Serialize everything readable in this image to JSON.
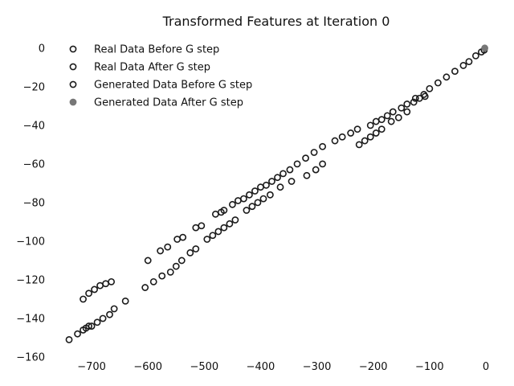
{
  "chart_data": {
    "type": "scatter",
    "title": "Transformed Features at Iteration 0",
    "xlabel": "",
    "ylabel": "",
    "xlim": [
      -760,
      10
    ],
    "ylim": [
      -160,
      2
    ],
    "xticks": [
      -700,
      -600,
      -500,
      -400,
      -300,
      -200,
      -100,
      0
    ],
    "yticks": [
      0,
      -20,
      -40,
      -60,
      -80,
      -100,
      -120,
      -140,
      -160
    ],
    "grid": false,
    "legend_position": "top-left",
    "series": [
      {
        "name": "Real Data Before G step",
        "marker": "open-circle",
        "color": "#1a1a1a",
        "x": [
          -715,
          -705,
          -695,
          -685,
          -675,
          -665,
          -600,
          -578,
          -565,
          -548,
          -538,
          -515,
          -505,
          -480,
          -470,
          -465,
          -450,
          -440,
          -430,
          -420,
          -410,
          -400,
          -390,
          -380,
          -370,
          -360,
          -348,
          -335,
          -320,
          -305,
          -290,
          -268,
          -255,
          -240,
          -228,
          -205,
          -195,
          -185,
          -175,
          -165,
          -150,
          -140,
          -125,
          -110,
          -100,
          -85,
          -70,
          -55,
          -40,
          -30,
          -18,
          -8,
          -3
        ],
        "y": [
          -130,
          -127,
          -125,
          -123,
          -122,
          -121,
          -110,
          -105,
          -103,
          -99,
          -98,
          -93,
          -92,
          -86,
          -85,
          -84,
          -81,
          -79,
          -78,
          -76,
          -74,
          -72,
          -71,
          -69,
          -67,
          -65,
          -63,
          -60,
          -57,
          -54,
          -51,
          -48,
          -46,
          -44,
          -42,
          -40,
          -38,
          -37,
          -35,
          -33,
          -31,
          -29,
          -26,
          -24,
          -21,
          -18,
          -15,
          -12,
          -9,
          -7,
          -4,
          -2,
          -1
        ]
      },
      {
        "name": "Real Data After G step",
        "marker": "open-circle",
        "color": "#1a1a1a",
        "x": [
          -710,
          -700,
          -690,
          -680,
          -668,
          -660,
          -640,
          -605,
          -590,
          -575,
          -560,
          -550,
          -540,
          -525,
          -515,
          -495,
          -485,
          -475,
          -465,
          -455,
          -445,
          -425,
          -415,
          -405,
          -395,
          -383,
          -365,
          -345,
          -318,
          -302,
          -290,
          -225,
          -215,
          -205,
          -195,
          -185,
          -168,
          -155,
          -140
        ],
        "y": [
          -145,
          -144,
          -142,
          -140,
          -138,
          -135,
          -131,
          -124,
          -121,
          -118,
          -116,
          -113,
          -110,
          -106,
          -104,
          -99,
          -97,
          -95,
          -93,
          -91,
          -89,
          -84,
          -82,
          -80,
          -78,
          -76,
          -72,
          -69,
          -66,
          -63,
          -60,
          -50,
          -48,
          -46,
          -44,
          -42,
          -38,
          -36,
          -33
        ]
      },
      {
        "name": "Generated Data Before G step",
        "marker": "open-circle",
        "color": "#1a1a1a",
        "x": [
          -740,
          -725,
          -715,
          -705,
          -128,
          -118,
          -108
        ],
        "y": [
          -151,
          -148,
          -146,
          -144,
          -28,
          -26,
          -25
        ]
      },
      {
        "name": "Generated Data After G step",
        "marker": "filled-circle",
        "color": "#777777",
        "x": [
          -2
        ],
        "y": [
          0
        ]
      }
    ]
  }
}
